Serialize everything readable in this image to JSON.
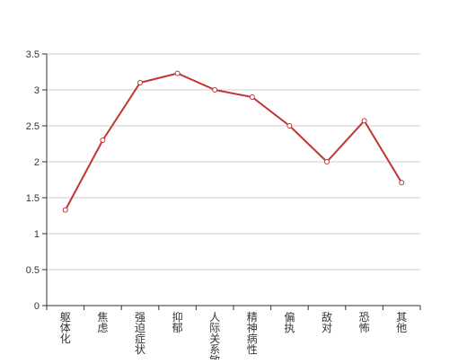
{
  "chart_data": {
    "type": "line",
    "categories": [
      "躯体化",
      "焦虑",
      "强迫症状",
      "抑郁",
      "人际关系敏感",
      "精神病性",
      "偏执",
      "敌对",
      "恐怖",
      "其他"
    ],
    "series": [
      {
        "values": [
          1.33,
          2.3,
          3.1,
          3.23,
          3.0,
          2.9,
          2.5,
          2.0,
          2.57,
          1.71
        ]
      }
    ],
    "y_ticks": [
      "0",
      "0.5",
      "1",
      "1.5",
      "2",
      "2.5",
      "3",
      "3.5"
    ],
    "ylim": [
      0,
      3.5
    ],
    "grid": true,
    "line_color": "#c23531",
    "axis_color": "#333333",
    "grid_color": "#cccccc"
  }
}
